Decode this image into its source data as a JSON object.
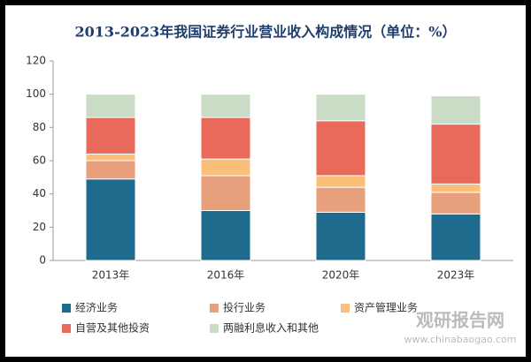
{
  "chart_data": {
    "type": "stacked-bar",
    "title": "2013-2023年我国证券行业营业收入构成情况（单位：%）",
    "categories": [
      "2013年",
      "2016年",
      "2020年",
      "2023年"
    ],
    "series": [
      {
        "name": "经济业务",
        "color": "#1f6b8e",
        "values": [
          49,
          30,
          29,
          28
        ]
      },
      {
        "name": "投行业务",
        "color": "#e89f7b",
        "values": [
          11,
          21,
          15,
          13
        ]
      },
      {
        "name": "资产管理业务",
        "color": "#fac07a",
        "values": [
          4,
          10,
          7,
          5
        ]
      },
      {
        "name": "自营及其他投资",
        "color": "#e9695a",
        "values": [
          22,
          25,
          33,
          36
        ]
      },
      {
        "name": "两融利息收入和其他",
        "color": "#cadcc6",
        "values": [
          14,
          14,
          16,
          17
        ]
      }
    ],
    "ylim": [
      0,
      120
    ],
    "yticks": [
      0,
      20,
      40,
      60,
      80,
      100,
      120
    ],
    "grid": false,
    "watermark": {
      "name": "观研报告网",
      "url": "www.chinabaogao.com"
    }
  }
}
